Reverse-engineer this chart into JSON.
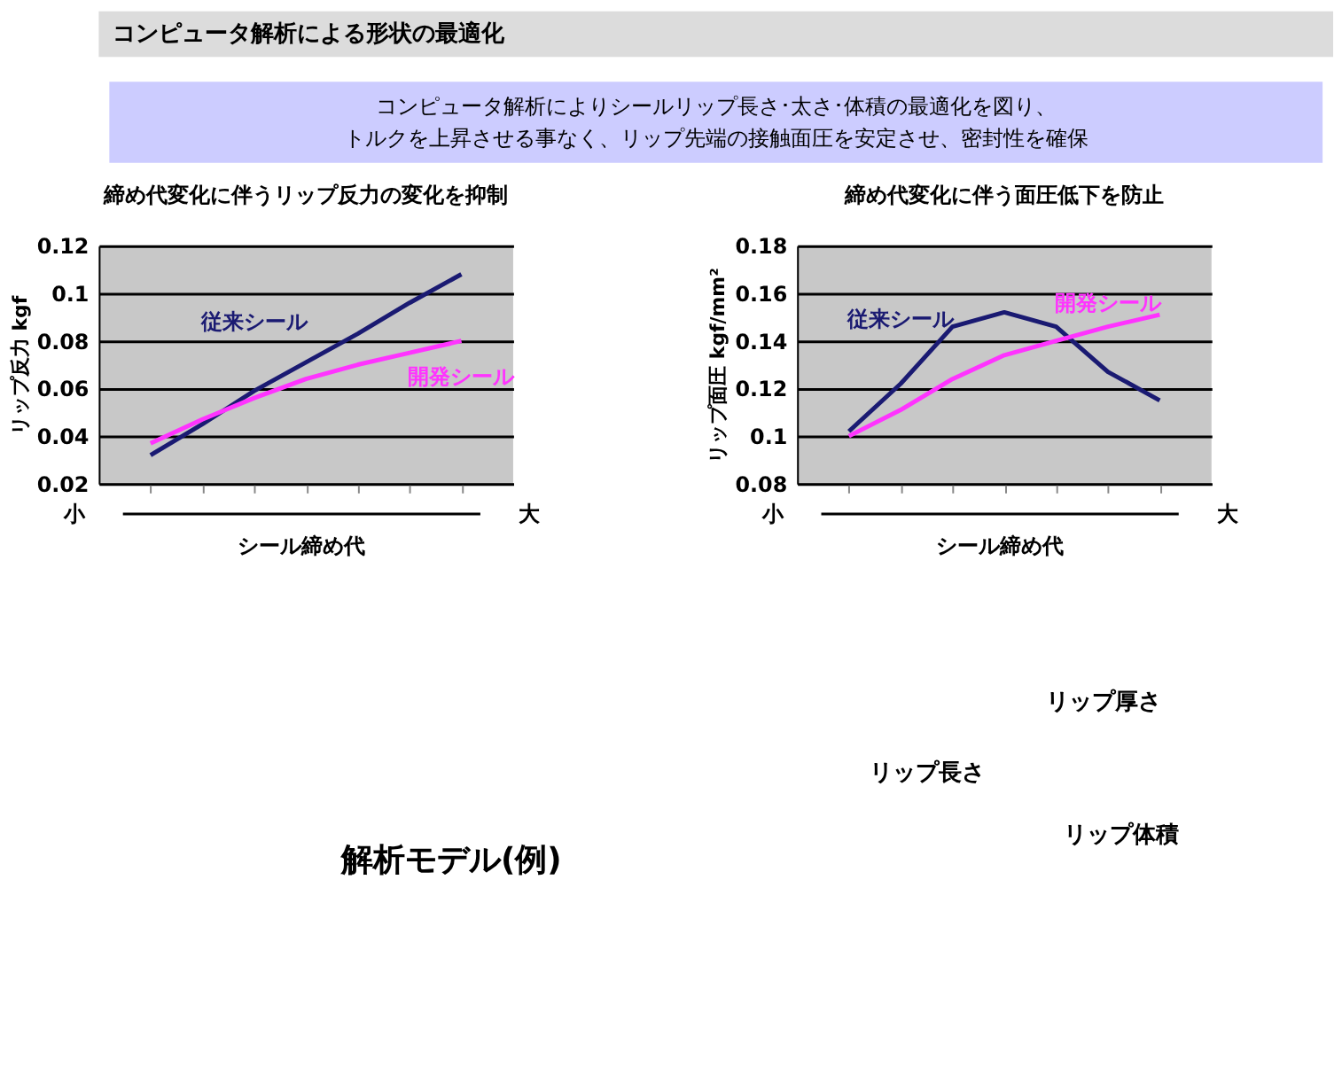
{
  "chart_data": [
    {
      "type": "other",
      "title": "コンピュータ解析による形状の最適化",
      "subtitle": [
        "コンピュータ解析によりシールリップ長さ･太さ･体積の最適化を図り、",
        "トルクを上昇させる事なく、リップ先端の接触面圧を安定させ、密封性を確保"
      ]
    },
    {
      "type": "line",
      "title": "締め代変化に伴うリップ反力の変化を抑制",
      "xlabel": "シール締め代",
      "ylabel": "リップ反力 kgf",
      "categories": [
        null,
        null,
        null,
        null,
        null,
        null,
        null
      ],
      "series": [
        {
          "name": "従来シール",
          "color": "#1a1a72",
          "values": [
            0.032,
            0.045,
            0.059,
            0.071,
            0.083,
            0.096,
            0.108
          ]
        },
        {
          "name": "開発シール",
          "color": "#ff33ff",
          "values": [
            0.037,
            0.047,
            0.056,
            0.064,
            0.07,
            0.075,
            0.08
          ]
        }
      ],
      "ylim": [
        0.02,
        0.12
      ],
      "yticks": [
        0.02,
        0.04,
        0.06,
        0.08,
        0.1,
        0.12
      ],
      "grid": "y",
      "legend": false,
      "tick_labels": "y",
      "marker": "none",
      "line_style": "solid",
      "annotations": [
        "小",
        "大"
      ]
    },
    {
      "type": "line",
      "title": "締め代変化に伴う面圧低下を防止",
      "xlabel": "シール締め代",
      "ylabel": "リップ面圧 kgf/mm²",
      "categories": [
        null,
        null,
        null,
        null,
        null,
        null,
        null
      ],
      "series": [
        {
          "name": "従来シール",
          "color": "#1a1a72",
          "values": [
            0.102,
            0.122,
            0.146,
            0.152,
            0.146,
            0.127,
            0.115
          ]
        },
        {
          "name": "開発シール",
          "color": "#ff33ff",
          "values": [
            0.1,
            0.111,
            0.124,
            0.134,
            0.14,
            0.146,
            0.151
          ]
        }
      ],
      "ylim": [
        0.08,
        0.18
      ],
      "yticks": [
        0.08,
        0.1,
        0.12,
        0.14,
        0.16,
        0.18
      ],
      "grid": "y",
      "legend": false,
      "tick_labels": "y",
      "marker": "none",
      "line_style": "solid",
      "annotations": [
        "小",
        "大"
      ]
    },
    {
      "type": "other",
      "annotations": [
        "解析モデル(例)",
        "リップ厚さ",
        "リップ長さ",
        "リップ体積"
      ]
    }
  ]
}
